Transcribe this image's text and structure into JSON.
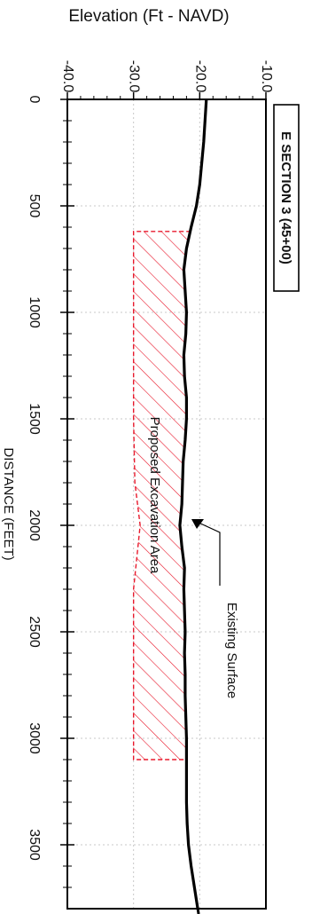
{
  "chart_data": {
    "type": "area",
    "title": "E SECTION 3 (45+00)",
    "xlabel": "DISTANCE (FEET)",
    "ylabel": "Elevation (Ft - NAVD)",
    "xlim": [
      0,
      3800
    ],
    "ylim": [
      -40,
      -10
    ],
    "x_ticks": [
      "0",
      "500",
      "1000",
      "1500",
      "2000",
      "2500",
      "3000",
      "3500"
    ],
    "y_ticks": [
      "-40.0",
      "-30.0",
      "-20.0",
      "-10.0"
    ],
    "grid": true,
    "series": [
      {
        "name": "Existing Surface",
        "points": [
          [
            0,
            -19.0
          ],
          [
            100,
            -19.2
          ],
          [
            200,
            -19.4
          ],
          [
            300,
            -19.7
          ],
          [
            400,
            -20.0
          ],
          [
            500,
            -20.5
          ],
          [
            600,
            -21.3
          ],
          [
            700,
            -22.0
          ],
          [
            800,
            -22.4
          ],
          [
            900,
            -22.2
          ],
          [
            1000,
            -22.0
          ],
          [
            1100,
            -22.1
          ],
          [
            1200,
            -22.4
          ],
          [
            1300,
            -22.3
          ],
          [
            1400,
            -22.0
          ],
          [
            1500,
            -22.0
          ],
          [
            1600,
            -22.2
          ],
          [
            1700,
            -22.5
          ],
          [
            1800,
            -22.6
          ],
          [
            1900,
            -22.7
          ],
          [
            2000,
            -23.0
          ],
          [
            2100,
            -22.7
          ],
          [
            2200,
            -22.3
          ],
          [
            2300,
            -22.4
          ],
          [
            2400,
            -22.3
          ],
          [
            2500,
            -22.2
          ],
          [
            2600,
            -22.3
          ],
          [
            2700,
            -22.2
          ],
          [
            2800,
            -22.2
          ],
          [
            2900,
            -22.1
          ],
          [
            3000,
            -22.0
          ],
          [
            3100,
            -22.0
          ],
          [
            3200,
            -22.0
          ],
          [
            3300,
            -22.0
          ],
          [
            3400,
            -21.9
          ],
          [
            3500,
            -21.7
          ],
          [
            3600,
            -21.3
          ],
          [
            3700,
            -20.8
          ],
          [
            3800,
            -20.3
          ]
        ]
      },
      {
        "name": "Proposed Excavation Area",
        "bottom": [
          [
            620,
            -30.0
          ],
          [
            1000,
            -30.0
          ],
          [
            1500,
            -30.0
          ],
          [
            1800,
            -29.8
          ],
          [
            2000,
            -29.0
          ],
          [
            2150,
            -29.5
          ],
          [
            2300,
            -30.0
          ],
          [
            2600,
            -30.0
          ],
          [
            3000,
            -30.0
          ],
          [
            3100,
            -30.0
          ]
        ]
      }
    ],
    "annotations": [
      "Proposed Excavation Area",
      "Existing Surface"
    ]
  },
  "colors": {
    "surface": "#000000",
    "excavation": "#e8192c",
    "grid": "#c8c8c8"
  }
}
